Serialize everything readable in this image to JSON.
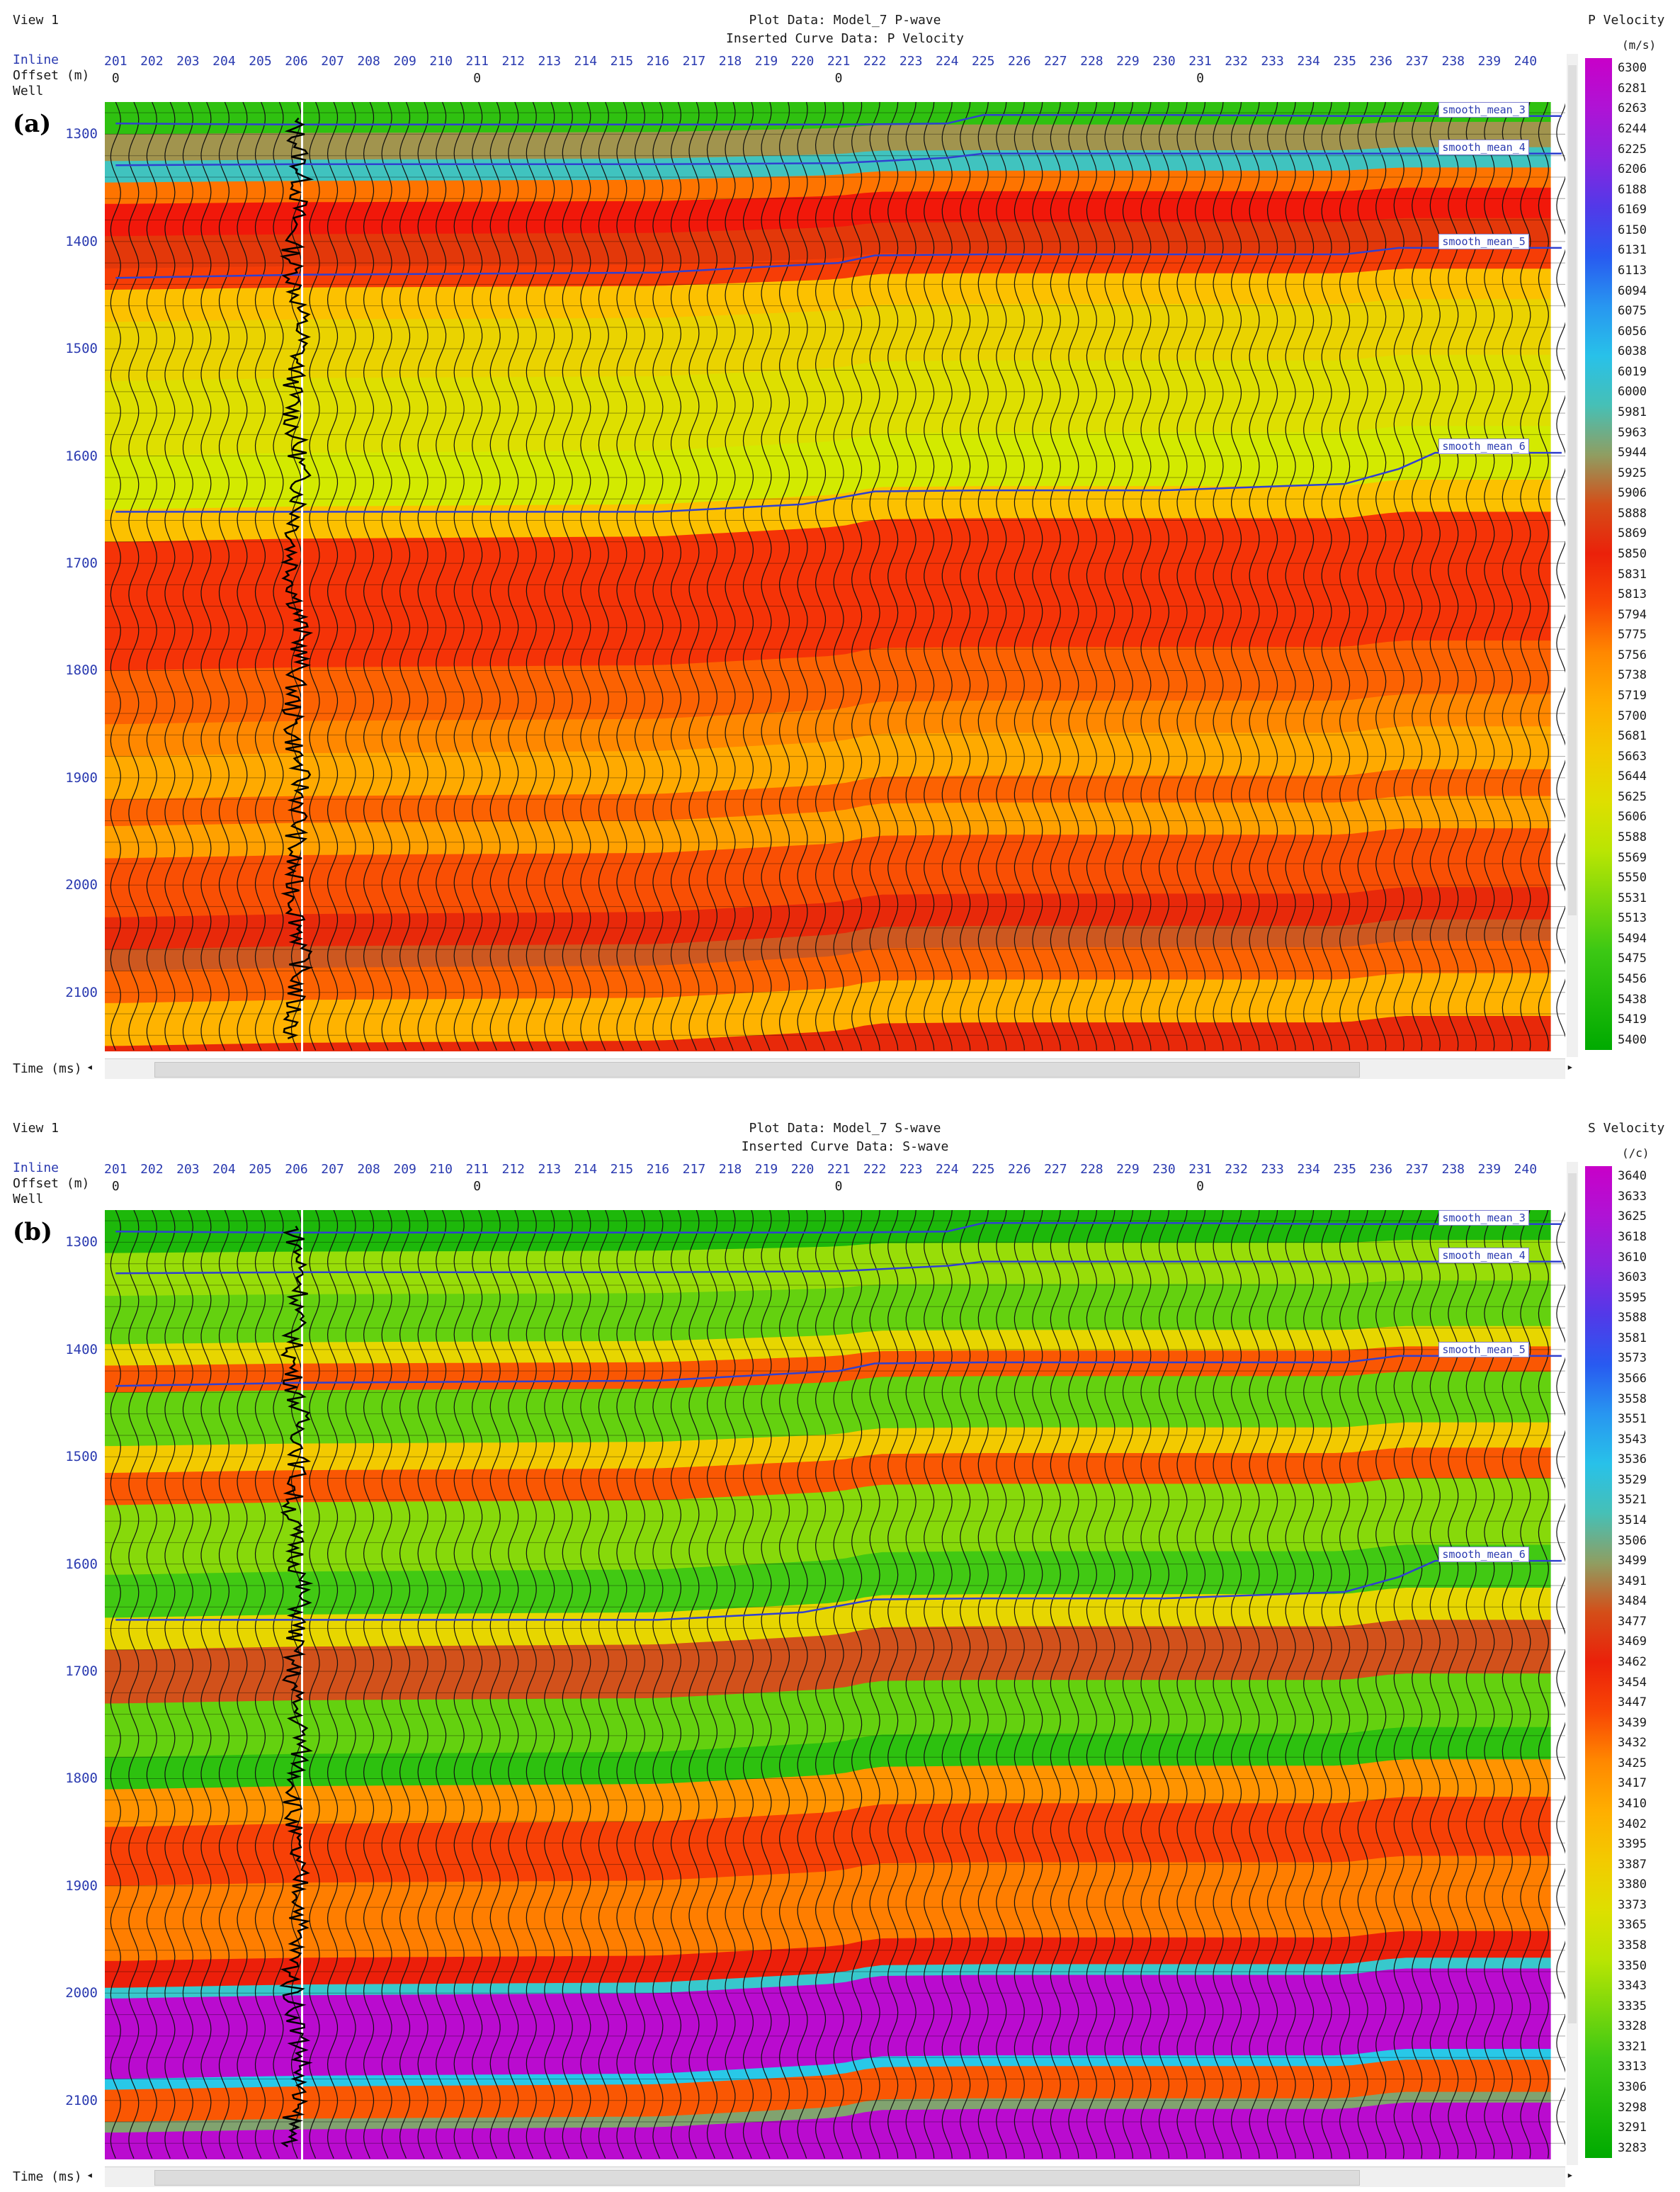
{
  "panels": [
    {
      "view_label": "View 1",
      "panel_letter": "(a)",
      "title_line1": "Plot Data: Model_7 P-wave",
      "title_line2": "Inserted Curve Data: P Velocity",
      "colorbar_title": "P Velocity",
      "colorbar_unit": "(m/s)",
      "header_labels": [
        "Inline",
        "Offset (m)",
        "Well"
      ],
      "time_label": "Time (ms)",
      "horizon_labels": [
        "smooth_mean_3",
        "smooth_mean_4",
        "smooth_mean_5",
        "smooth_mean_6"
      ]
    },
    {
      "view_label": "View 1",
      "panel_letter": "(b)",
      "title_line1": "Plot Data: Model_7 S-wave",
      "title_line2": "Inserted Curve Data: S-wave",
      "colorbar_title": "S Velocity",
      "colorbar_unit": "(/c)",
      "header_labels": [
        "Inline",
        "Offset (m)",
        "Well"
      ],
      "time_label": "Time (ms)",
      "horizon_labels": [
        "smooth_mean_3",
        "smooth_mean_4",
        "smooth_mean_5",
        "smooth_mean_6"
      ]
    }
  ],
  "chart_data": [
    {
      "type": "heatmap",
      "title": "Plot Data: Model_7 P-wave",
      "subtitle": "Inserted Curve Data: P Velocity",
      "xlabel": "Inline",
      "ylabel": "Time (ms)",
      "x_ticks": [
        201,
        202,
        203,
        204,
        205,
        206,
        207,
        208,
        209,
        210,
        211,
        212,
        213,
        214,
        215,
        216,
        217,
        218,
        219,
        220,
        221,
        222,
        223,
        224,
        225,
        226,
        227,
        228,
        229,
        230,
        231,
        232,
        233,
        234,
        235,
        236,
        237,
        238,
        239,
        240
      ],
      "offset_ticks": [
        {
          "inline": 201,
          "label": "0"
        },
        {
          "inline": 211,
          "label": "0"
        },
        {
          "inline": 221,
          "label": "0"
        },
        {
          "inline": 231,
          "label": "0"
        }
      ],
      "y_ticks": [
        1300,
        1400,
        1500,
        1600,
        1700,
        1800,
        1900,
        2000,
        2100
      ],
      "ylim": [
        1270,
        2155
      ],
      "xlim": [
        200.7,
        241.1
      ],
      "colorbar": {
        "title": "P Velocity",
        "unit": "(m/s)",
        "labels": [
          6300,
          6281,
          6263,
          6244,
          6225,
          6206,
          6188,
          6169,
          6150,
          6131,
          6113,
          6094,
          6075,
          6056,
          6038,
          6019,
          6000,
          5981,
          5963,
          5944,
          5925,
          5906,
          5888,
          5869,
          5850,
          5831,
          5813,
          5794,
          5775,
          5756,
          5738,
          5719,
          5700,
          5681,
          5663,
          5644,
          5625,
          5606,
          5588,
          5569,
          5550,
          5531,
          5513,
          5494,
          5475,
          5456,
          5438,
          5419,
          5400
        ],
        "range": [
          5400,
          6300
        ]
      },
      "velocity_layers_at_well": [
        {
          "top": 1270,
          "velocity": 5470
        },
        {
          "top": 1300,
          "velocity": 5930
        },
        {
          "top": 1325,
          "velocity": 5990
        },
        {
          "top": 1345,
          "velocity": 5780
        },
        {
          "top": 1365,
          "velocity": 5830
        },
        {
          "top": 1395,
          "velocity": 5880
        },
        {
          "top": 1425,
          "velocity": 5810
        },
        {
          "top": 1445,
          "velocity": 5690
        },
        {
          "top": 1475,
          "velocity": 5650
        },
        {
          "top": 1530,
          "velocity": 5625
        },
        {
          "top": 1600,
          "velocity": 5600
        },
        {
          "top": 1650,
          "velocity": 5690
        },
        {
          "top": 1680,
          "velocity": 5815
        },
        {
          "top": 1800,
          "velocity": 5790
        },
        {
          "top": 1850,
          "velocity": 5760
        },
        {
          "top": 1880,
          "velocity": 5720
        },
        {
          "top": 1920,
          "velocity": 5790
        },
        {
          "top": 1945,
          "velocity": 5730
        },
        {
          "top": 1975,
          "velocity": 5800
        },
        {
          "top": 2030,
          "velocity": 5860
        },
        {
          "top": 2060,
          "velocity": 5900
        },
        {
          "top": 2080,
          "velocity": 5790
        },
        {
          "top": 2110,
          "velocity": 5710
        },
        {
          "top": 2150,
          "velocity": 5860
        }
      ],
      "horizons": [
        {
          "name": "smooth_mean_3",
          "inline": [
            201,
            206,
            211,
            216,
            221,
            224,
            225,
            230,
            235,
            236.5,
            241
          ],
          "time": [
            1290,
            1291,
            1291,
            1291,
            1291,
            1290,
            1282,
            1282,
            1283,
            1283,
            1283
          ]
        },
        {
          "name": "smooth_mean_4",
          "inline": [
            201,
            206,
            211,
            216,
            221,
            224,
            225,
            230,
            235,
            236.5,
            241
          ],
          "time": [
            1329,
            1328,
            1328,
            1328,
            1327,
            1322,
            1318,
            1318,
            1318,
            1318,
            1318
          ]
        },
        {
          "name": "smooth_mean_5",
          "inline": [
            201,
            206,
            211,
            216,
            221,
            222,
            225,
            230,
            235,
            236.5,
            241
          ],
          "time": [
            1434,
            1431,
            1430,
            1429,
            1420,
            1413,
            1412,
            1412,
            1412,
            1406,
            1406
          ]
        },
        {
          "name": "smooth_mean_6",
          "inline": [
            201,
            206,
            211,
            216,
            220,
            222,
            225,
            230,
            235,
            236.5,
            237.5,
            241
          ],
          "time": [
            1652,
            1652,
            1652,
            1652,
            1645,
            1633,
            1632,
            1632,
            1626,
            1612,
            1597,
            1597
          ]
        }
      ],
      "well": {
        "inline": 206,
        "name": "Well"
      }
    },
    {
      "type": "heatmap",
      "title": "Plot Data: Model_7 S-wave",
      "subtitle": "Inserted Curve Data: S-wave",
      "xlabel": "Inline",
      "ylabel": "Time (ms)",
      "x_ticks": [
        201,
        202,
        203,
        204,
        205,
        206,
        207,
        208,
        209,
        210,
        211,
        212,
        213,
        214,
        215,
        216,
        217,
        218,
        219,
        220,
        221,
        222,
        223,
        224,
        225,
        226,
        227,
        228,
        229,
        230,
        231,
        232,
        233,
        234,
        235,
        236,
        237,
        238,
        239,
        240
      ],
      "offset_ticks": [
        {
          "inline": 201,
          "label": "0"
        },
        {
          "inline": 211,
          "label": "0"
        },
        {
          "inline": 221,
          "label": "0"
        },
        {
          "inline": 231,
          "label": "0"
        }
      ],
      "y_ticks": [
        1300,
        1400,
        1500,
        1600,
        1700,
        1800,
        1900,
        2000,
        2100
      ],
      "ylim": [
        1270,
        2155
      ],
      "xlim": [
        200.7,
        241.1
      ],
      "colorbar": {
        "title": "S Velocity",
        "unit": "(/c)",
        "labels": [
          3640,
          3633,
          3625,
          3618,
          3610,
          3603,
          3595,
          3588,
          3581,
          3573,
          3566,
          3558,
          3551,
          3543,
          3536,
          3529,
          3521,
          3514,
          3506,
          3499,
          3491,
          3484,
          3477,
          3469,
          3462,
          3454,
          3447,
          3439,
          3432,
          3425,
          3417,
          3410,
          3402,
          3395,
          3387,
          3380,
          3373,
          3365,
          3358,
          3350,
          3343,
          3335,
          3328,
          3321,
          3313,
          3306,
          3298,
          3291,
          3283
        ],
        "range": [
          3283,
          3640
        ]
      },
      "velocity_layers_at_well": [
        {
          "top": 1270,
          "velocity": 3300
        },
        {
          "top": 1310,
          "velocity": 3345
        },
        {
          "top": 1350,
          "velocity": 3330
        },
        {
          "top": 1395,
          "velocity": 3380
        },
        {
          "top": 1415,
          "velocity": 3440
        },
        {
          "top": 1440,
          "velocity": 3330
        },
        {
          "top": 1490,
          "velocity": 3390
        },
        {
          "top": 1515,
          "velocity": 3440
        },
        {
          "top": 1545,
          "velocity": 3340
        },
        {
          "top": 1610,
          "velocity": 3320
        },
        {
          "top": 1650,
          "velocity": 3380
        },
        {
          "top": 1680,
          "velocity": 3480
        },
        {
          "top": 1730,
          "velocity": 3330
        },
        {
          "top": 1780,
          "velocity": 3310
        },
        {
          "top": 1810,
          "velocity": 3420
        },
        {
          "top": 1845,
          "velocity": 3445
        },
        {
          "top": 1900,
          "velocity": 3430
        },
        {
          "top": 1970,
          "velocity": 3460
        },
        {
          "top": 1995,
          "velocity": 3520
        },
        {
          "top": 2005,
          "velocity": 3630
        },
        {
          "top": 2080,
          "velocity": 3530
        },
        {
          "top": 2090,
          "velocity": 3440
        },
        {
          "top": 2120,
          "velocity": 3500
        },
        {
          "top": 2130,
          "velocity": 3630
        }
      ],
      "horizons": [
        {
          "name": "smooth_mean_3",
          "inline": [
            201,
            206,
            211,
            216,
            221,
            224,
            225,
            230,
            235,
            236.5,
            241
          ],
          "time": [
            1290,
            1291,
            1291,
            1291,
            1291,
            1290,
            1282,
            1282,
            1283,
            1283,
            1283
          ]
        },
        {
          "name": "smooth_mean_4",
          "inline": [
            201,
            206,
            211,
            216,
            221,
            224,
            225,
            230,
            235,
            236.5,
            241
          ],
          "time": [
            1329,
            1328,
            1328,
            1328,
            1327,
            1322,
            1318,
            1318,
            1318,
            1318,
            1318
          ]
        },
        {
          "name": "smooth_mean_5",
          "inline": [
            201,
            206,
            211,
            216,
            221,
            222,
            225,
            230,
            235,
            236.5,
            241
          ],
          "time": [
            1434,
            1431,
            1430,
            1429,
            1420,
            1413,
            1412,
            1412,
            1412,
            1406,
            1406
          ]
        },
        {
          "name": "smooth_mean_6",
          "inline": [
            201,
            206,
            211,
            216,
            220,
            222,
            225,
            230,
            235,
            236.5,
            237.5,
            241
          ],
          "time": [
            1652,
            1652,
            1652,
            1652,
            1645,
            1633,
            1632,
            1632,
            1626,
            1612,
            1597,
            1597
          ]
        }
      ],
      "well": {
        "inline": 206,
        "name": "Well"
      }
    }
  ]
}
